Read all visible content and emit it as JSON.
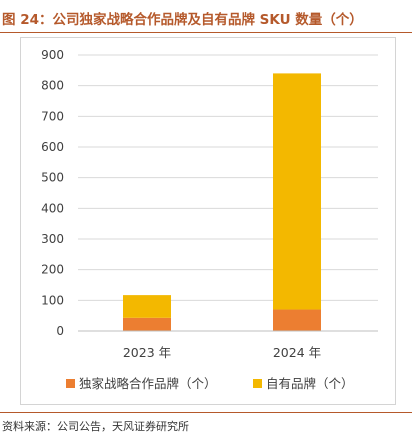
{
  "figure": {
    "title": "图 24：公司独家战略合作品牌及自有品牌 SKU 数量（个）",
    "source": "资料来源：公司公告，天风证券研究所"
  },
  "colors": {
    "exclusive": "#ec7e31",
    "own": "#f3b800",
    "title": "#b5592b"
  },
  "chart_data": {
    "type": "bar",
    "stacked": true,
    "categories": [
      "2023 年",
      "2024 年"
    ],
    "series": [
      {
        "name": "独家战略合作品牌（个）",
        "values": [
          43,
          70
        ]
      },
      {
        "name": "自有品牌（个）",
        "values": [
          74,
          770
        ]
      }
    ],
    "ylim": [
      0,
      900
    ],
    "yticks": [
      0,
      100,
      200,
      300,
      400,
      500,
      600,
      700,
      800,
      900
    ],
    "grid": true,
    "legend": "bottom"
  }
}
